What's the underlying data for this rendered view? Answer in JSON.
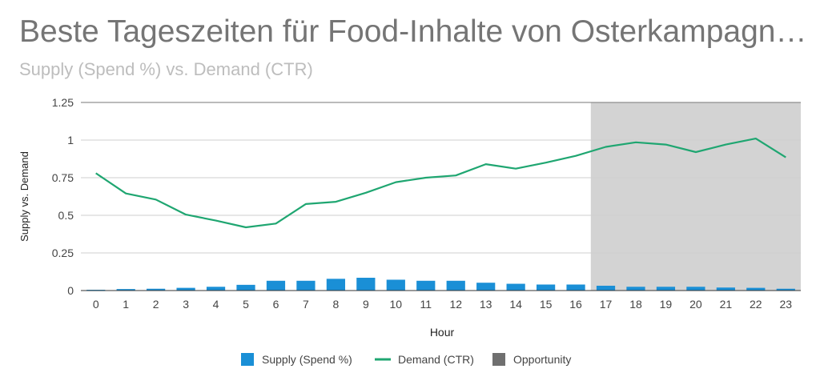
{
  "chart_data": {
    "type": "bar",
    "title": "Beste Tageszeiten für Food-Inhalte von Osterkampagn…",
    "subtitle": "Supply (Spend %) vs. Demand (CTR)",
    "xlabel": "Hour",
    "ylabel": "Supply vs. Demand",
    "ylim": [
      0,
      1.25
    ],
    "yticks": [
      "0",
      "0.25",
      "0.5",
      "0.75",
      "1",
      "1.25"
    ],
    "categories": [
      "0",
      "1",
      "2",
      "3",
      "4",
      "5",
      "6",
      "7",
      "8",
      "9",
      "10",
      "11",
      "12",
      "13",
      "14",
      "15",
      "16",
      "17",
      "18",
      "19",
      "20",
      "21",
      "22",
      "23"
    ],
    "series": [
      {
        "name": "Supply (Spend %)",
        "type": "bar",
        "color": "#1a8fd6",
        "values": [
          0.005,
          0.01,
          0.012,
          0.018,
          0.025,
          0.038,
          0.065,
          0.065,
          0.078,
          0.085,
          0.072,
          0.065,
          0.065,
          0.052,
          0.045,
          0.04,
          0.04,
          0.032,
          0.025,
          0.025,
          0.025,
          0.02,
          0.018,
          0.012
        ]
      },
      {
        "name": "Demand (CTR)",
        "type": "line",
        "color": "#1fa671",
        "values": [
          0.78,
          0.645,
          0.605,
          0.505,
          0.465,
          0.42,
          0.445,
          0.575,
          0.59,
          0.65,
          0.72,
          0.75,
          0.765,
          0.84,
          0.81,
          0.85,
          0.895,
          0.955,
          0.985,
          0.97,
          0.92,
          0.97,
          1.01,
          0.885
        ]
      },
      {
        "name": "Opportunity",
        "type": "area",
        "color": "#6f6f6f",
        "fill": "#d3d3d3",
        "range": [
          "17",
          "23"
        ],
        "value": 1.25
      }
    ],
    "legend": "bottom",
    "grid": true
  }
}
